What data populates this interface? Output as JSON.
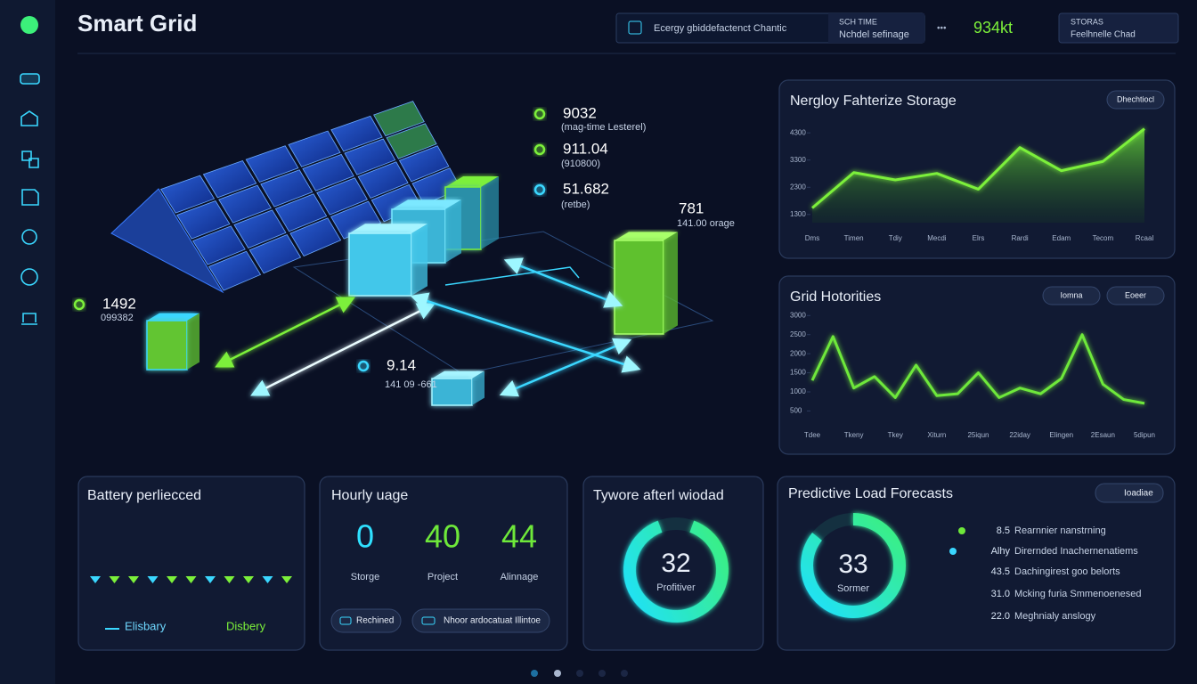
{
  "header": {
    "title": "Smart Grid",
    "search": "Ecergy gbiddefactenct Chantic",
    "time_label": "SCH TIME",
    "time_value": "Nchdel sefinage",
    "reading": "934kt",
    "status_label": "STORAS",
    "status_value": "Feelhnelle Chad"
  },
  "scene": {
    "labels": [
      {
        "value": "9032",
        "caption": "(mag-time Lesterel)"
      },
      {
        "value": "911.04",
        "caption": "(910800)"
      },
      {
        "value": "51.682",
        "caption": "(retbe)"
      },
      {
        "value": "781",
        "caption": "141.00 orage"
      },
      {
        "value": "1492",
        "caption": "099382"
      },
      {
        "value": "9.14",
        "caption": "141 09 -661"
      }
    ]
  },
  "chart_data": [
    {
      "type": "line",
      "title": "Nergloy Fahterize Storage",
      "buttons": [
        "Dhechtiocl"
      ],
      "categories": [
        "Dms",
        "Timen",
        "Tdiy",
        "Mecdi",
        "Elrs",
        "Rardi",
        "Edam",
        "Tecom",
        "Rcaal"
      ],
      "values": [
        1540,
        2840,
        2570,
        2810,
        2230,
        3760,
        2910,
        3250,
        4450
      ],
      "color": "#7cf03a",
      "area": true,
      "ylim": [
        1000,
        4600
      ],
      "yticks": [
        1300,
        2300,
        3300,
        4300
      ]
    },
    {
      "type": "line",
      "title": "Grid Hotorities",
      "buttons": [
        "Iomna",
        "Eoeer"
      ],
      "categories": [
        "Tdee",
        null,
        "Tkeny",
        null,
        "Tkey",
        null,
        "Xiturn",
        null,
        "25iqun",
        null,
        "22iday",
        null,
        "Elingen",
        null,
        "2Esaun",
        null,
        "5dipun"
      ],
      "values": [
        1300,
        2450,
        1100,
        1400,
        850,
        1700,
        900,
        950,
        1500,
        850,
        1100,
        950,
        1350,
        2500,
        1200,
        800,
        700
      ],
      "color": "#6ee83a",
      "area": false,
      "ylim": [
        300,
        3100
      ],
      "yticks": [
        500,
        1000,
        1500,
        2000,
        2500,
        3000
      ]
    }
  ],
  "battery": {
    "title": "Battery perliecced",
    "labels": [
      "Elisbary",
      "Disbery"
    ]
  },
  "hourly": {
    "title": "Hourly uage",
    "stats": [
      {
        "value": "0",
        "label": "Storge"
      },
      {
        "value": "40",
        "label": "Project"
      },
      {
        "value": "44",
        "label": "Alinnage"
      }
    ],
    "buttons": [
      "Rechined",
      "Nhoor ardocatuat Illintoe"
    ]
  },
  "tywore": {
    "title": "Tywore afterl wiodad",
    "value": "32",
    "label": "Profitiver"
  },
  "forecast": {
    "title": "Predictive Load Forecasts",
    "button": "Ioadiae",
    "value": "33",
    "label": "Sormer",
    "rows": [
      {
        "value": "8.5",
        "label": "Rearnnier nanstrning"
      },
      {
        "value": "Alhy",
        "label": "Dirernded Inachernenatiems"
      },
      {
        "value": "43.5",
        "label": "Dachingirest goo belorts"
      },
      {
        "value": "31.0",
        "label": "Mcking furia Smmenoenesed"
      },
      {
        "value": "22.0",
        "label": "Meghnialy anslogy"
      }
    ]
  }
}
